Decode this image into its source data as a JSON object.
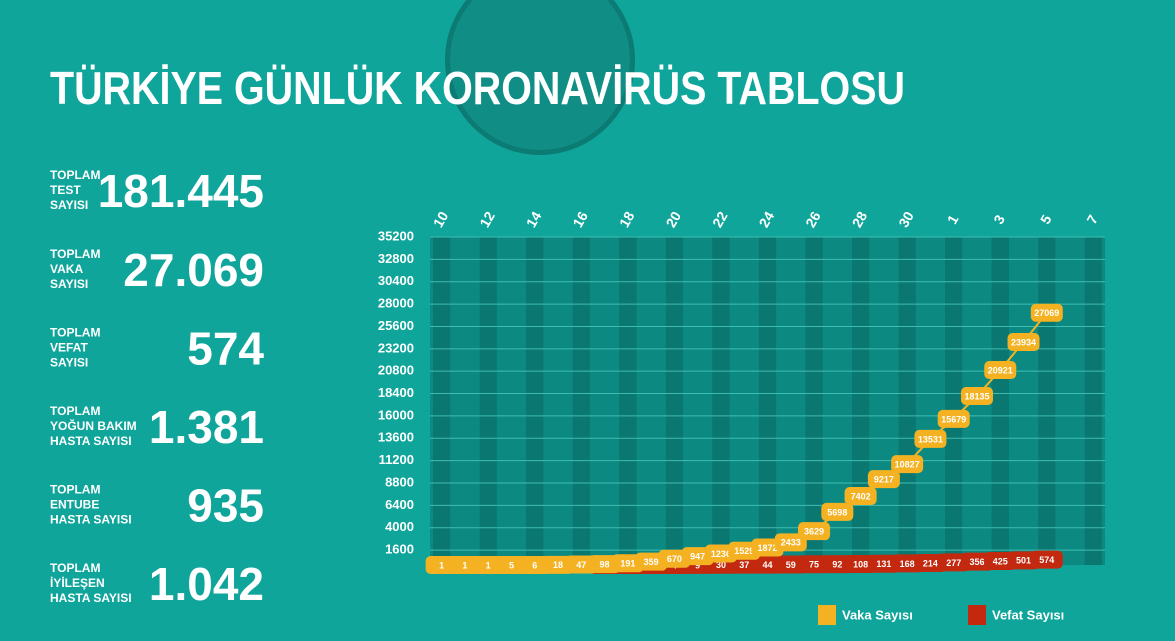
{
  "header": {
    "title": "TÜRKİYE GÜNLÜK KORONAVİRÜS TABLOSU"
  },
  "stats": [
    {
      "label": [
        "TOPLAM",
        "TEST",
        "SAYISI"
      ],
      "value": "181.445"
    },
    {
      "label": [
        "TOPLAM",
        "VAKA",
        "SAYISI"
      ],
      "value": "27.069"
    },
    {
      "label": [
        "TOPLAM",
        "VEFAT",
        "SAYISI"
      ],
      "value": "574"
    },
    {
      "label": [
        "TOPLAM",
        "YOĞUN BAKIM",
        "HASTA SAYISI"
      ],
      "value": "1.381"
    },
    {
      "label": [
        "TOPLAM",
        "ENTUBE",
        "HASTA SAYISI"
      ],
      "value": "935"
    },
    {
      "label": [
        "TOPLAM",
        "İYİLEŞEN",
        "HASTA SAYISI"
      ],
      "value": "1.042"
    }
  ],
  "chart_data": {
    "type": "line",
    "categories": [
      "10",
      null,
      "12",
      null,
      "14",
      null,
      "16",
      null,
      "18",
      null,
      "20",
      null,
      "22",
      null,
      "24",
      null,
      "26",
      null,
      "28",
      null,
      "30",
      null,
      "1",
      null,
      "3",
      null,
      "5",
      null,
      "7"
    ],
    "series": [
      {
        "name": "Vaka Sayısı",
        "color": "#f4b223",
        "values": [
          1,
          1,
          1,
          5,
          6,
          18,
          47,
          98,
          191,
          359,
          670,
          947,
          1236,
          1529,
          1872,
          2433,
          3629,
          5698,
          7402,
          9217,
          10827,
          13531,
          15679,
          18135,
          20921,
          23934,
          27069,
          null,
          null
        ]
      },
      {
        "name": "Vefat Sayısı",
        "color": "#c2290f",
        "values": [
          null,
          null,
          null,
          null,
          null,
          null,
          null,
          1,
          2,
          3,
          4,
          9,
          30,
          37,
          44,
          59,
          75,
          92,
          108,
          131,
          168,
          214,
          277,
          356,
          425,
          501,
          574,
          null,
          null
        ]
      }
    ],
    "ylim": [
      0,
      35200
    ],
    "yticks": [
      1600,
      4000,
      6400,
      8800,
      11200,
      13600,
      16000,
      18400,
      20800,
      23200,
      25600,
      28000,
      30400,
      32800,
      35200
    ],
    "grid": true
  }
}
